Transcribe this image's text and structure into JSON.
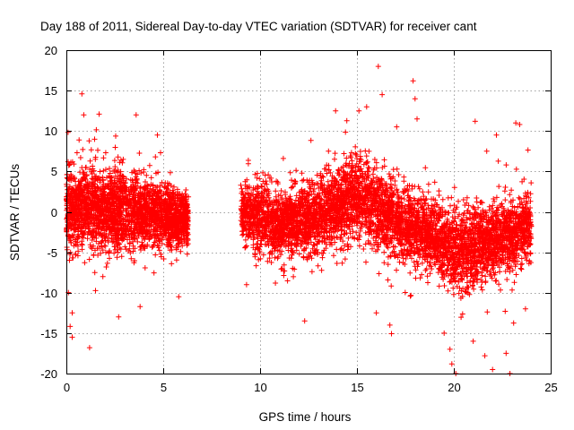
{
  "chart_data": {
    "type": "scatter",
    "title": "Day 188 of 2011, Sidereal Day-to-day VTEC variation (SDTVAR) for receiver cant",
    "xlabel": "GPS time / hours",
    "ylabel": "SDTVAR / TECUs",
    "xlim": [
      0,
      25
    ],
    "ylim": [
      -20,
      20
    ],
    "xticks": [
      0,
      5,
      10,
      15,
      20,
      25
    ],
    "yticks": [
      -20,
      -15,
      -10,
      -5,
      0,
      5,
      10,
      15,
      20
    ],
    "xtick_labels": [
      "0",
      "5",
      "10",
      "15",
      "20",
      "25"
    ],
    "ytick_labels": [
      "-20",
      "-15",
      "-10",
      "-5",
      "0",
      "5",
      "10",
      "15",
      "20"
    ],
    "grid": true,
    "marker": "+",
    "color": "#ff0000",
    "series": [
      {
        "name": "SDTVAR",
        "clusters": [
          {
            "x_range": [
              0.0,
              6.3
            ],
            "points": 2600
          },
          {
            "x_range": [
              9.0,
              24.0
            ],
            "points": 5200
          }
        ],
        "trend": [
          {
            "x": 0.0,
            "y": 0.5,
            "spread": 4.5
          },
          {
            "x": 2.0,
            "y": 0.5,
            "spread": 4.5
          },
          {
            "x": 4.0,
            "y": 0.0,
            "spread": 4.0
          },
          {
            "x": 6.0,
            "y": -1.0,
            "spread": 3.0
          },
          {
            "x": 9.0,
            "y": 0.0,
            "spread": 3.5
          },
          {
            "x": 11.0,
            "y": -1.5,
            "spread": 4.0
          },
          {
            "x": 13.0,
            "y": -0.5,
            "spread": 4.0
          },
          {
            "x": 15.0,
            "y": 2.0,
            "spread": 4.5
          },
          {
            "x": 17.0,
            "y": -1.0,
            "spread": 4.0
          },
          {
            "x": 19.0,
            "y": -3.0,
            "spread": 4.0
          },
          {
            "x": 20.0,
            "y": -5.0,
            "spread": 4.5
          },
          {
            "x": 22.0,
            "y": -3.5,
            "spread": 4.0
          },
          {
            "x": 24.0,
            "y": -2.0,
            "spread": 3.5
          }
        ],
        "outliers": [
          {
            "x": 0.8,
            "y": 14.6
          },
          {
            "x": 0.9,
            "y": 12.0
          },
          {
            "x": 3.6,
            "y": 12.0
          },
          {
            "x": 0.3,
            "y": -15.5
          },
          {
            "x": 1.2,
            "y": -16.8
          },
          {
            "x": 0.3,
            "y": -12.5
          },
          {
            "x": 2.7,
            "y": -13.0
          },
          {
            "x": 4.7,
            "y": 9.5
          },
          {
            "x": 5.8,
            "y": -10.5
          },
          {
            "x": 9.3,
            "y": -9.0
          },
          {
            "x": 12.3,
            "y": -13.5
          },
          {
            "x": 13.9,
            "y": 12.5
          },
          {
            "x": 15.1,
            "y": 12.5
          },
          {
            "x": 15.5,
            "y": 13.0
          },
          {
            "x": 16.1,
            "y": 18.0
          },
          {
            "x": 16.3,
            "y": 14.5
          },
          {
            "x": 17.9,
            "y": 16.2
          },
          {
            "x": 18.0,
            "y": 14.0
          },
          {
            "x": 18.1,
            "y": 11.5
          },
          {
            "x": 16.0,
            "y": -12.5
          },
          {
            "x": 16.7,
            "y": -14.0
          },
          {
            "x": 19.5,
            "y": -15.0
          },
          {
            "x": 19.8,
            "y": -17.0
          },
          {
            "x": 19.9,
            "y": -18.8
          },
          {
            "x": 20.1,
            "y": -20.0
          },
          {
            "x": 21.1,
            "y": 11.2
          },
          {
            "x": 21.0,
            "y": -16.0
          },
          {
            "x": 21.6,
            "y": -17.8
          },
          {
            "x": 22.0,
            "y": -19.5
          },
          {
            "x": 22.7,
            "y": -17.5
          },
          {
            "x": 22.9,
            "y": -20.0
          },
          {
            "x": 23.2,
            "y": 11.0
          },
          {
            "x": 23.4,
            "y": 10.8
          },
          {
            "x": 23.7,
            "y": -12.0
          },
          {
            "x": 22.2,
            "y": 9.5
          },
          {
            "x": 21.7,
            "y": 7.5
          }
        ]
      }
    ]
  }
}
